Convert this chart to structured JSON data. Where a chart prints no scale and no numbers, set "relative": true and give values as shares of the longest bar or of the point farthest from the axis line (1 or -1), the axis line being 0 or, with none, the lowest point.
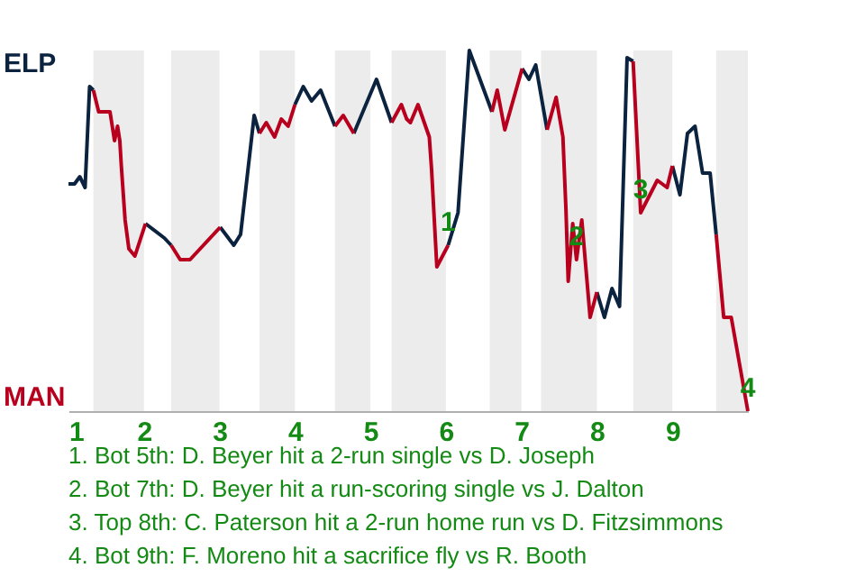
{
  "chart_data": {
    "type": "line",
    "relative": true,
    "x": [
      1.0,
      1.08,
      1.15,
      1.22,
      1.28,
      1.33,
      1.4,
      1.55,
      1.61,
      1.65,
      1.68,
      1.7,
      1.75,
      1.8,
      1.88,
      2.02,
      2.27,
      2.36,
      2.48,
      2.61,
      3.01,
      3.19,
      3.28,
      3.46,
      3.53,
      3.62,
      3.73,
      3.82,
      3.91,
      4.0,
      4.11,
      4.22,
      4.34,
      4.53,
      4.64,
      4.78,
      5.08,
      5.28,
      5.41,
      5.48,
      5.53,
      5.63,
      5.78,
      5.81,
      5.88,
      6.03,
      6.16,
      6.31,
      6.61,
      6.68,
      6.78,
      7.01,
      7.1,
      7.19,
      7.34,
      7.46,
      7.55,
      7.59,
      7.62,
      7.68,
      7.73,
      7.8,
      7.91,
      8.0,
      8.1,
      8.2,
      8.3,
      8.4,
      8.48,
      8.58,
      8.8,
      8.93,
      9.0,
      9.1,
      9.2,
      9.3,
      9.4,
      9.5,
      9.58,
      9.68,
      9.78,
      10.0
    ],
    "xlim": [
      1,
      10
    ],
    "xticks": [
      1,
      2,
      3,
      4,
      5,
      6,
      7,
      8,
      9
    ],
    "series": [
      {
        "name": "ELP",
        "color": "#0c2340",
        "values": [
          0.63,
          0.63,
          0.65,
          0.62,
          0.9,
          0.89,
          null,
          null,
          null,
          null,
          null,
          null,
          null,
          null,
          null,
          0.52,
          0.48,
          0.46,
          null,
          null,
          0.51,
          0.46,
          0.49,
          0.82,
          0.77,
          null,
          null,
          null,
          null,
          0.85,
          0.9,
          0.86,
          0.89,
          0.79,
          null,
          0.77,
          0.92,
          0.8,
          null,
          null,
          null,
          null,
          null,
          null,
          null,
          0.46,
          0.55,
          1.0,
          0.83,
          null,
          null,
          0.95,
          0.92,
          0.96,
          0.78,
          null,
          null,
          null,
          null,
          null,
          null,
          null,
          null,
          0.33,
          0.26,
          0.34,
          0.29,
          0.98,
          0.97,
          null,
          null,
          null,
          0.68,
          0.6,
          0.77,
          0.79,
          0.66,
          0.66,
          0.49,
          null,
          null,
          null
        ]
      },
      {
        "name": "MAN",
        "color": "#b8001e",
        "values": [
          null,
          null,
          null,
          null,
          null,
          0.89,
          0.83,
          0.83,
          0.75,
          0.79,
          0.75,
          0.68,
          0.53,
          0.45,
          0.43,
          0.52,
          null,
          0.46,
          0.42,
          0.42,
          0.51,
          null,
          null,
          null,
          0.77,
          0.8,
          0.76,
          0.81,
          0.79,
          0.85,
          null,
          null,
          null,
          0.79,
          0.82,
          0.77,
          null,
          0.8,
          0.85,
          0.81,
          0.8,
          0.85,
          0.76,
          0.67,
          0.4,
          0.46,
          null,
          null,
          0.83,
          0.89,
          0.78,
          0.95,
          null,
          null,
          0.78,
          0.87,
          0.76,
          0.56,
          0.36,
          0.52,
          0.42,
          0.53,
          0.26,
          0.33,
          null,
          null,
          null,
          null,
          0.97,
          0.55,
          0.64,
          0.62,
          0.68,
          null,
          null,
          null,
          null,
          null,
          0.49,
          0.26,
          0.26,
          0
        ]
      }
    ],
    "bands": [
      {
        "axis": "x",
        "from": 1.33,
        "to": 2,
        "color": "#ececec"
      },
      {
        "axis": "x",
        "from": 2.36,
        "to": 3,
        "color": "#ececec"
      },
      {
        "axis": "x",
        "from": 3.53,
        "to": 4,
        "color": "#ececec"
      },
      {
        "axis": "x",
        "from": 4.53,
        "to": 5,
        "color": "#ececec"
      },
      {
        "axis": "x",
        "from": 5.28,
        "to": 6,
        "color": "#ececec"
      },
      {
        "axis": "x",
        "from": 6.58,
        "to": 7,
        "color": "#ececec"
      },
      {
        "axis": "x",
        "from": 7.26,
        "to": 8,
        "color": "#ececec"
      },
      {
        "axis": "x",
        "from": 8.48,
        "to": 9,
        "color": "#ececec"
      },
      {
        "axis": "x",
        "from": 9.58,
        "to": 10,
        "color": "#ececec"
      }
    ],
    "annotations": [
      {
        "text": "1",
        "x": 6.03,
        "y": 0.46
      },
      {
        "text": "2",
        "x": 7.73,
        "y": 0.42
      },
      {
        "text": "3",
        "x": 8.58,
        "y": 0.55
      },
      {
        "text": "4",
        "x": 10.0,
        "y": 0
      },
      "1. Bot 5th: D. Beyer hit a 2-run single vs D. Joseph",
      "2. Bot 7th: D. Beyer hit a run-scoring single vs J. Dalton",
      "3. Top 8th: C. Paterson hit a 2-run home run vs D. Fitzsimmons",
      "4. Bot 9th: F. Moreno hit a sacrifice fly vs R. Booth"
    ]
  }
}
